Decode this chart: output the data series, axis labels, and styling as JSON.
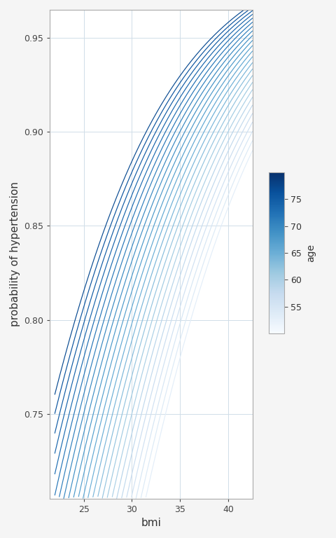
{
  "title": "",
  "xlabel": "bmi",
  "ylabel": "probability of hypertension",
  "xlim": [
    21.5,
    42.5
  ],
  "ylim": [
    0.705,
    0.965
  ],
  "yticks": [
    0.75,
    0.8,
    0.85,
    0.9,
    0.95
  ],
  "xticks": [
    25,
    30,
    35,
    40
  ],
  "bmi_min": 22.0,
  "bmi_max": 42.5,
  "age_min": 53,
  "age_max": 77,
  "age_step": 1,
  "intercept": -5.5,
  "bmi_coef": 0.11,
  "age_coef": 0.055,
  "colorbar_label": "age",
  "colorbar_ticks": [
    55,
    60,
    65,
    70,
    75
  ],
  "cmap": "Blues",
  "cmap_vmin": 50,
  "cmap_vmax": 80,
  "background_color": "#f5f5f5",
  "grid_color": "#d0dde8",
  "line_width": 0.85
}
